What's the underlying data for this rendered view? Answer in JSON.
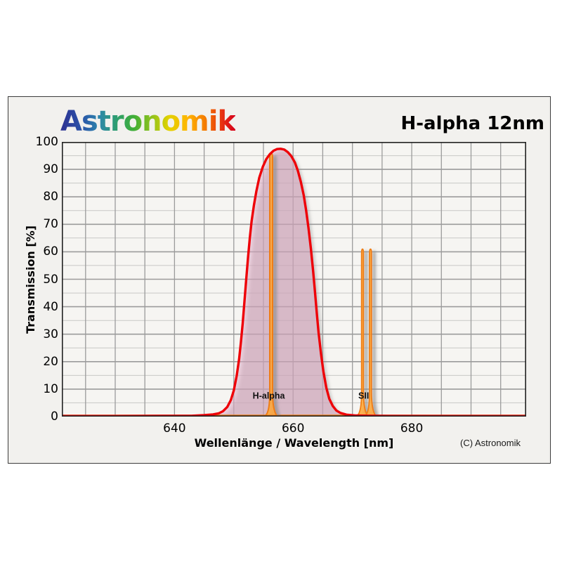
{
  "branding": {
    "logo_text": "Astronomik",
    "logo_gradient": [
      "#2E3192",
      "#2A52A8",
      "#2E86AC",
      "#2E9E70",
      "#3FAE36",
      "#8DC21E",
      "#E3D200",
      "#FFB400",
      "#F47A00",
      "#E83410",
      "#D6001C"
    ]
  },
  "header": {
    "title": "H-alpha 12nm"
  },
  "footer": {
    "copyright": "(C) Astronomik"
  },
  "chart_data": {
    "type": "area",
    "title": "H-alpha 12nm",
    "xlabel": "Wellenlänge / Wavelength [nm]",
    "ylabel": "Transmission [%]",
    "xlim": [
      621,
      699.3
    ],
    "ylim": [
      0,
      100
    ],
    "x_ticks": [
      640,
      660,
      680
    ],
    "y_ticks": [
      0,
      10,
      20,
      30,
      40,
      50,
      60,
      70,
      80,
      90,
      100
    ],
    "x_grid_step_nm": 5,
    "y_minor_step": 5,
    "y_major_step": 10,
    "grid": true,
    "legend": "none",
    "series": [
      {
        "name": "filter_transmission_curve",
        "description": "H-alpha 12nm filter passband, peak ~97.5% at ~657.5nm, FWHM ~12nm",
        "color": "#ee0008",
        "fill": "rgba(222,168,196,0.5)",
        "points": [
          [
            621,
            0.2
          ],
          [
            630,
            0.2
          ],
          [
            638,
            0.25
          ],
          [
            643,
            0.3
          ],
          [
            645,
            0.5
          ],
          [
            646.5,
            0.8
          ],
          [
            647.5,
            1.2
          ],
          [
            648.2,
            2
          ],
          [
            648.9,
            3.5
          ],
          [
            649.5,
            6
          ],
          [
            650,
            9.5
          ],
          [
            650.5,
            15
          ],
          [
            650.9,
            21
          ],
          [
            651.2,
            27
          ],
          [
            651.5,
            34
          ],
          [
            651.8,
            42
          ],
          [
            652.1,
            50
          ],
          [
            652.4,
            58
          ],
          [
            652.7,
            65
          ],
          [
            653,
            71
          ],
          [
            653.4,
            77
          ],
          [
            653.8,
            82
          ],
          [
            654.3,
            87
          ],
          [
            654.9,
            91
          ],
          [
            655.5,
            93.8
          ],
          [
            656.1,
            95.6
          ],
          [
            656.7,
            96.8
          ],
          [
            657.3,
            97.4
          ],
          [
            657.9,
            97.5
          ],
          [
            658.5,
            97.2
          ],
          [
            659.1,
            96.3
          ],
          [
            659.7,
            94.8
          ],
          [
            660.3,
            92.5
          ],
          [
            660.8,
            89.5
          ],
          [
            661.3,
            85.5
          ],
          [
            661.8,
            80.5
          ],
          [
            662.2,
            75
          ],
          [
            662.6,
            68.5
          ],
          [
            663,
            61
          ],
          [
            663.4,
            52.5
          ],
          [
            663.7,
            45
          ],
          [
            664,
            37.5
          ],
          [
            664.3,
            30.5
          ],
          [
            664.7,
            23
          ],
          [
            665.1,
            16.5
          ],
          [
            665.6,
            10.5
          ],
          [
            666.1,
            6.5
          ],
          [
            666.7,
            3.8
          ],
          [
            667.3,
            2.2
          ],
          [
            668,
            1.3
          ],
          [
            669,
            0.7
          ],
          [
            670.5,
            0.4
          ],
          [
            672.5,
            0.3
          ],
          [
            676,
            0.22
          ],
          [
            684,
            0.2
          ],
          [
            699.3,
            0.2
          ]
        ]
      }
    ],
    "emission_lines": [
      {
        "name": "H-alpha",
        "center_nm": 656.3,
        "peak_pct": 95.8,
        "top_half_width_nm": 0.24,
        "base_half_width_nm": 0.95,
        "stroke_width": 2
      },
      {
        "name": "SII-a",
        "center_nm": 671.7,
        "peak_pct": 61.0,
        "top_half_width_nm": 0.16,
        "base_half_width_nm": 0.85,
        "stroke_width": 1.8
      },
      {
        "name": "SII-b",
        "center_nm": 673.05,
        "peak_pct": 61.0,
        "top_half_width_nm": 0.16,
        "base_half_width_nm": 0.85,
        "stroke_width": 1.8
      }
    ],
    "annotations": [
      {
        "text": "H-alpha",
        "x_nm": 655.9,
        "y_pct": 6.5
      },
      {
        "text": "SII",
        "x_nm": 671.9,
        "y_pct": 6.5
      }
    ],
    "colors": {
      "box_background": "#f2f1ee",
      "plot_background": "#f6f5f2",
      "grid_major": "#9b9b9b",
      "grid_minor": "#c8c8c6",
      "plot_border": "#222222",
      "curve_red": "#ee0008",
      "passband_fill_pink": "rgba(222,168,196,0.5)",
      "emission_stroke": "#ee7d14",
      "emission_fill": "rgba(255,168,50,0.85)",
      "shadow": "#8d8d8d"
    }
  }
}
